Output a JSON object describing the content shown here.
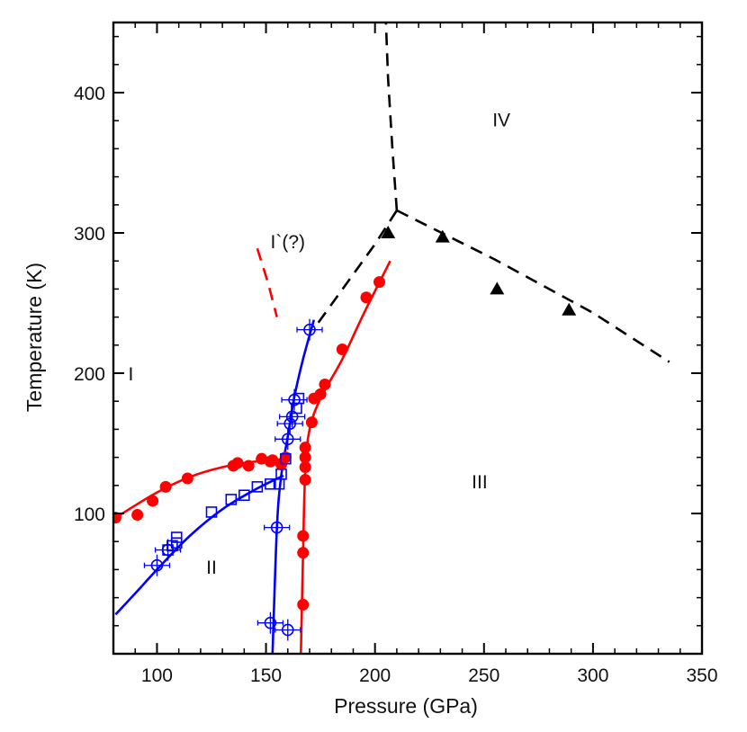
{
  "chart_data": {
    "type": "scatter",
    "title": "",
    "xlabel": "Pressure (GPa)",
    "ylabel": "Temperature (K)",
    "xlim": [
      80,
      350
    ],
    "ylim": [
      0,
      450
    ],
    "xticks": [
      100,
      150,
      200,
      250,
      300,
      350
    ],
    "yticks": [
      100,
      200,
      300,
      400
    ],
    "colors": {
      "red": "#ff0000",
      "blue": "#0000ff",
      "black": "#000000"
    },
    "regions": [
      {
        "label": "I",
        "x": 88,
        "y": 195
      },
      {
        "label": "II",
        "x": 125,
        "y": 57
      },
      {
        "label": "III",
        "x": 248,
        "y": 118
      },
      {
        "label": "IV",
        "x": 258,
        "y": 376
      },
      {
        "label": "I`(?)",
        "x": 160,
        "y": 289
      }
    ],
    "series": [
      {
        "name": "red-filled-circles-lower",
        "marker": "filled-circle",
        "color": "#ff0000",
        "points": [
          [
            81,
            97
          ],
          [
            91,
            99
          ],
          [
            98,
            109
          ],
          [
            104,
            119
          ],
          [
            114,
            125
          ],
          [
            135,
            134
          ],
          [
            137,
            136
          ],
          [
            142,
            134
          ],
          [
            148,
            139
          ],
          [
            152,
            137
          ],
          [
            153,
            138
          ],
          [
            157,
            135
          ],
          [
            159,
            140
          ]
        ]
      },
      {
        "name": "red-filled-circles-upper",
        "marker": "filled-circle",
        "color": "#ff0000",
        "points": [
          [
            167,
            35
          ],
          [
            167,
            72
          ],
          [
            167,
            84
          ],
          [
            168,
            124
          ],
          [
            168,
            133
          ],
          [
            168,
            140
          ],
          [
            168,
            147
          ],
          [
            171,
            165
          ],
          [
            172,
            182
          ],
          [
            175,
            185
          ],
          [
            177,
            192
          ],
          [
            185,
            217
          ],
          [
            196,
            254
          ],
          [
            202,
            265
          ]
        ]
      },
      {
        "name": "blue-open-squares",
        "marker": "open-square",
        "color": "#0000ff",
        "points": [
          [
            105,
            74
          ],
          [
            107,
            77
          ],
          [
            109,
            79
          ],
          [
            109,
            83
          ],
          [
            125,
            101
          ],
          [
            134,
            110
          ],
          [
            140,
            113
          ],
          [
            146,
            119
          ],
          [
            152,
            121
          ],
          [
            156,
            121
          ],
          [
            157,
            128
          ],
          [
            159,
            139
          ],
          [
            164,
            175
          ],
          [
            165,
            182
          ]
        ]
      },
      {
        "name": "blue-open-circles",
        "marker": "open-circle-errorbar",
        "color": "#0000ff",
        "points": [
          [
            100,
            63
          ],
          [
            105,
            74
          ],
          [
            152,
            22
          ],
          [
            155,
            90
          ],
          [
            160,
            153
          ],
          [
            161,
            164
          ],
          [
            162,
            169
          ],
          [
            163,
            181
          ],
          [
            170,
            231
          ],
          [
            160,
            17
          ]
        ]
      },
      {
        "name": "black-triangles",
        "marker": "filled-triangle",
        "color": "#000000",
        "points": [
          [
            206,
            300
          ],
          [
            231,
            297
          ],
          [
            256,
            260
          ],
          [
            289,
            245
          ]
        ]
      }
    ],
    "curves": [
      {
        "name": "red-boundary-I-II",
        "style": "solid",
        "color": "#ff0000",
        "points": [
          [
            81,
            97
          ],
          [
            100,
            115
          ],
          [
            115,
            126
          ],
          [
            130,
            133
          ],
          [
            145,
            137
          ],
          [
            160,
            139
          ]
        ]
      },
      {
        "name": "red-boundary-III",
        "style": "solid",
        "color": "#ff0000",
        "points": [
          [
            166,
            0
          ],
          [
            167,
            70
          ],
          [
            168,
            130
          ],
          [
            170,
            160
          ],
          [
            175,
            182
          ],
          [
            185,
            210
          ],
          [
            195,
            243
          ],
          [
            207,
            280
          ]
        ]
      },
      {
        "name": "blue-boundary-I-II",
        "style": "solid",
        "color": "#0000ff",
        "points": [
          [
            81,
            28
          ],
          [
            90,
            43
          ],
          [
            100,
            60
          ],
          [
            115,
            84
          ],
          [
            130,
            103
          ],
          [
            145,
            117
          ],
          [
            158,
            127
          ]
        ]
      },
      {
        "name": "blue-boundary-upper",
        "style": "solid",
        "color": "#0000ff",
        "points": [
          [
            153,
            0
          ],
          [
            155,
            90
          ],
          [
            157,
            127
          ],
          [
            160,
            155
          ],
          [
            163,
            183
          ],
          [
            167,
            210
          ],
          [
            172,
            238
          ]
        ]
      },
      {
        "name": "black-dashed-I-IV",
        "style": "dashed",
        "color": "#000000",
        "points": [
          [
            174,
            236
          ],
          [
            200,
            292
          ],
          [
            210,
            316
          ]
        ]
      },
      {
        "name": "black-dashed-vertical",
        "style": "dashed",
        "color": "#000000",
        "points": [
          [
            210,
            316
          ],
          [
            208,
            360
          ],
          [
            206,
            410
          ],
          [
            205,
            450
          ]
        ]
      },
      {
        "name": "black-dashed-III-IV",
        "style": "dashed",
        "color": "#000000",
        "points": [
          [
            210,
            316
          ],
          [
            255,
            281
          ],
          [
            300,
            243
          ],
          [
            335,
            208
          ]
        ]
      },
      {
        "name": "red-dashed",
        "style": "dashed",
        "color": "#ff0000",
        "points": [
          [
            146,
            289
          ],
          [
            151,
            264
          ],
          [
            155,
            240
          ]
        ]
      }
    ]
  }
}
